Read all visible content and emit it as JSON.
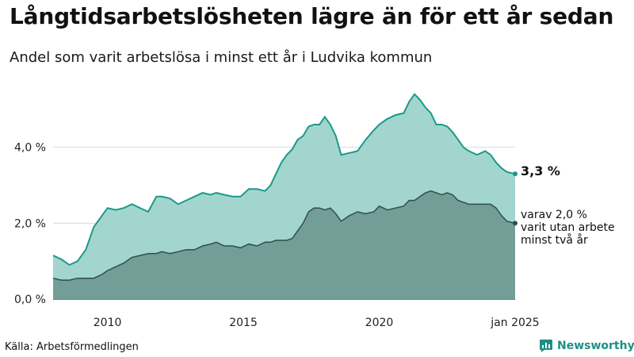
{
  "title": "Långtidsarbetslösheten lägre än för ett år sedan",
  "subtitle": "Andel som varit arbetslösa i minst ett år i Ludvika kommun",
  "source": "Källa: Arbetsförmedlingen",
  "brand": {
    "name": "Newsworthy",
    "icon": "bar-chart-speech-icon"
  },
  "colors": {
    "area_total": "#a3d5cf",
    "line_total": "#1a9a88",
    "area_sub": "#729e97",
    "line_sub": "#2f4f4b",
    "grid": "#d9d9d9",
    "brand": "#1f8f85"
  },
  "chart_data": {
    "type": "area",
    "x_range": [
      "2008-01",
      "2025-01"
    ],
    "ylim": [
      0,
      6
    ],
    "y_ticks": [
      {
        "value": 0,
        "label": "0,0 %"
      },
      {
        "value": 2,
        "label": "2,0 %"
      },
      {
        "value": 4,
        "label": "4,0 %"
      }
    ],
    "x_ticks": [
      {
        "value": 2010,
        "label": "2010"
      },
      {
        "value": 2015,
        "label": "2015"
      },
      {
        "value": 2020,
        "label": "2020"
      },
      {
        "value": 2025,
        "label": "jan 2025"
      }
    ],
    "grid": true,
    "end_labels": {
      "total": "3,3 %",
      "sub_lines": [
        "varav 2,0 %",
        "varit utan arbete",
        "minst två år"
      ]
    },
    "series": [
      {
        "id": "total",
        "x": [
          2008.0,
          2008.3,
          2008.6,
          2008.9,
          2009.2,
          2009.5,
          2009.8,
          2010.0,
          2010.3,
          2010.6,
          2010.9,
          2011.2,
          2011.5,
          2011.8,
          2012.0,
          2012.3,
          2012.6,
          2012.9,
          2013.2,
          2013.5,
          2013.8,
          2014.0,
          2014.3,
          2014.6,
          2014.9,
          2015.2,
          2015.5,
          2015.8,
          2016.0,
          2016.2,
          2016.4,
          2016.6,
          2016.8,
          2017.0,
          2017.2,
          2017.4,
          2017.6,
          2017.8,
          2018.0,
          2018.2,
          2018.4,
          2018.6,
          2018.9,
          2019.2,
          2019.5,
          2019.8,
          2020.0,
          2020.3,
          2020.6,
          2020.9,
          2021.1,
          2021.3,
          2021.5,
          2021.7,
          2021.9,
          2022.1,
          2022.3,
          2022.5,
          2022.7,
          2022.9,
          2023.1,
          2023.3,
          2023.6,
          2023.9,
          2024.1,
          2024.3,
          2024.5,
          2024.7,
          2025.0
        ],
        "values": [
          1.15,
          1.05,
          0.9,
          1.0,
          1.3,
          1.9,
          2.2,
          2.4,
          2.35,
          2.4,
          2.5,
          2.4,
          2.3,
          2.7,
          2.7,
          2.65,
          2.5,
          2.6,
          2.7,
          2.8,
          2.75,
          2.8,
          2.75,
          2.7,
          2.7,
          2.9,
          2.9,
          2.85,
          3.0,
          3.3,
          3.6,
          3.8,
          3.95,
          4.2,
          4.3,
          4.55,
          4.6,
          4.6,
          4.8,
          4.6,
          4.3,
          3.8,
          3.85,
          3.9,
          4.2,
          4.45,
          4.6,
          4.75,
          4.85,
          4.9,
          5.2,
          5.4,
          5.25,
          5.05,
          4.9,
          4.6,
          4.6,
          4.55,
          4.4,
          4.2,
          4.0,
          3.9,
          3.8,
          3.9,
          3.8,
          3.6,
          3.45,
          3.35,
          3.3
        ]
      },
      {
        "id": "sub",
        "x": [
          2008.0,
          2008.3,
          2008.6,
          2008.9,
          2009.2,
          2009.5,
          2009.8,
          2010.0,
          2010.3,
          2010.6,
          2010.9,
          2011.2,
          2011.5,
          2011.8,
          2012.0,
          2012.3,
          2012.6,
          2012.9,
          2013.2,
          2013.5,
          2013.8,
          2014.0,
          2014.3,
          2014.6,
          2014.9,
          2015.2,
          2015.5,
          2015.8,
          2016.0,
          2016.2,
          2016.4,
          2016.6,
          2016.8,
          2017.0,
          2017.2,
          2017.4,
          2017.6,
          2017.8,
          2018.0,
          2018.2,
          2018.4,
          2018.6,
          2018.9,
          2019.2,
          2019.5,
          2019.8,
          2020.0,
          2020.3,
          2020.6,
          2020.9,
          2021.1,
          2021.3,
          2021.5,
          2021.7,
          2021.9,
          2022.1,
          2022.3,
          2022.5,
          2022.7,
          2022.9,
          2023.1,
          2023.3,
          2023.6,
          2023.9,
          2024.1,
          2024.3,
          2024.5,
          2024.7,
          2025.0
        ],
        "values": [
          0.55,
          0.5,
          0.5,
          0.55,
          0.55,
          0.55,
          0.65,
          0.75,
          0.85,
          0.95,
          1.1,
          1.15,
          1.2,
          1.2,
          1.25,
          1.2,
          1.25,
          1.3,
          1.3,
          1.4,
          1.45,
          1.5,
          1.4,
          1.4,
          1.35,
          1.45,
          1.4,
          1.5,
          1.5,
          1.55,
          1.55,
          1.55,
          1.6,
          1.8,
          2.0,
          2.3,
          2.4,
          2.4,
          2.35,
          2.4,
          2.25,
          2.05,
          2.2,
          2.3,
          2.25,
          2.3,
          2.45,
          2.35,
          2.4,
          2.45,
          2.6,
          2.6,
          2.7,
          2.8,
          2.85,
          2.8,
          2.75,
          2.8,
          2.75,
          2.6,
          2.55,
          2.5,
          2.5,
          2.5,
          2.5,
          2.4,
          2.2,
          2.05,
          2.0
        ]
      }
    ]
  }
}
